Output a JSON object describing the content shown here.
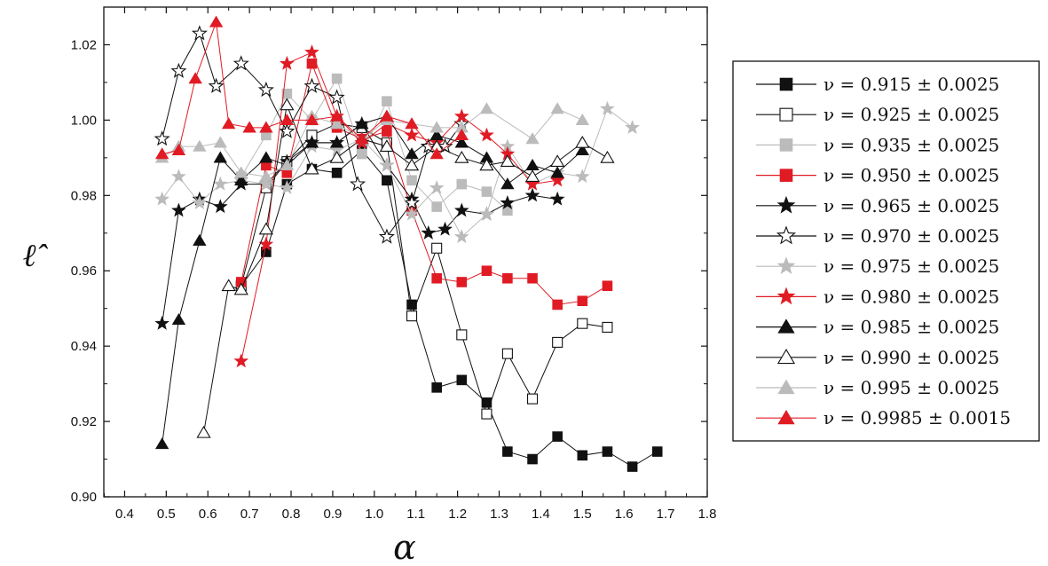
{
  "chart_data": {
    "type": "scatter",
    "xlabel": "α",
    "ylabel": "ℓ̂",
    "xlim": [
      0.35,
      1.8
    ],
    "ylim": [
      0.9,
      1.03
    ],
    "xticks": [
      "0.4",
      "0.5",
      "0.6",
      "0.7",
      "0.8",
      "0.9",
      "1.0",
      "1.1",
      "1.2",
      "1.3",
      "1.4",
      "1.5",
      "1.6",
      "1.7",
      "1.8"
    ],
    "yticks": [
      "0.90",
      "0.92",
      "0.94",
      "0.96",
      "0.98",
      "1.00",
      "1.02"
    ],
    "grid": false,
    "legend_position": "right",
    "series": [
      {
        "name": "ν = 0.915 ± 0.0025",
        "color": "#111111",
        "marker": "square",
        "fill": "filled",
        "x": [
          0.68,
          0.74,
          0.79,
          0.85,
          0.91,
          0.97,
          1.03,
          1.09,
          1.15,
          1.21,
          1.27,
          1.32,
          1.38,
          1.44,
          1.5,
          1.56,
          1.62,
          1.68
        ],
        "y": [
          0.956,
          0.965,
          0.983,
          0.987,
          0.986,
          0.992,
          0.984,
          0.951,
          0.929,
          0.931,
          0.925,
          0.912,
          0.91,
          0.916,
          0.911,
          0.912,
          0.908,
          0.912
        ]
      },
      {
        "name": "ν = 0.925 ± 0.0025",
        "color": "#111111",
        "marker": "square",
        "fill": "open",
        "x": [
          0.68,
          0.74,
          0.79,
          0.85,
          0.91,
          0.97,
          1.03,
          1.09,
          1.15,
          1.21,
          1.27,
          1.32,
          1.38,
          1.44,
          1.5,
          1.56
        ],
        "y": [
          0.956,
          0.982,
          0.989,
          0.996,
          0.999,
          0.998,
          0.994,
          0.948,
          0.966,
          0.943,
          0.922,
          0.938,
          0.926,
          0.941,
          0.946,
          0.945
        ]
      },
      {
        "name": "ν = 0.935 ± 0.0025",
        "color": "#bbbbbb",
        "marker": "square",
        "fill": "filled",
        "x": [
          0.68,
          0.74,
          0.79,
          0.85,
          0.91,
          0.97,
          1.03,
          1.09,
          1.15,
          1.21,
          1.27,
          1.32
        ],
        "y": [
          0.985,
          0.996,
          1.007,
          1.0,
          1.011,
          0.991,
          1.005,
          0.984,
          0.977,
          0.983,
          0.981,
          0.976
        ]
      },
      {
        "name": "ν = 0.950 ± 0.0025",
        "color": "#e01b24",
        "marker": "square",
        "fill": "filled",
        "x": [
          0.68,
          0.74,
          0.79,
          0.85,
          0.91,
          0.97,
          1.03,
          1.09,
          1.15,
          1.21,
          1.27,
          1.32,
          1.38,
          1.44,
          1.5,
          1.56
        ],
        "y": [
          0.957,
          0.988,
          0.986,
          1.015,
          0.998,
          0.995,
          0.997,
          0.976,
          0.958,
          0.957,
          0.96,
          0.958,
          0.958,
          0.951,
          0.952,
          0.956
        ]
      },
      {
        "name": "ν = 0.965 ± 0.0025",
        "color": "#111111",
        "marker": "star",
        "fill": "filled",
        "x": [
          0.49,
          0.53,
          0.58,
          0.63,
          0.68,
          0.74,
          0.79,
          0.85,
          0.91,
          0.97,
          1.03,
          1.09,
          1.13,
          1.17,
          1.21,
          1.27,
          1.32,
          1.38,
          1.44
        ],
        "y": [
          0.946,
          0.976,
          0.979,
          0.977,
          0.983,
          0.983,
          0.989,
          0.994,
          0.994,
          0.999,
          0.988,
          0.979,
          0.97,
          0.971,
          0.976,
          0.975,
          0.978,
          0.98,
          0.979
        ]
      },
      {
        "name": "ν = 0.970 ± 0.0025",
        "color": "#111111",
        "marker": "star",
        "fill": "open",
        "x": [
          0.49,
          0.53,
          0.58,
          0.62,
          0.68,
          0.74,
          0.79,
          0.85,
          0.91,
          0.96,
          1.03,
          1.09,
          1.13,
          1.17,
          1.21
        ],
        "y": [
          0.995,
          1.013,
          1.023,
          1.009,
          1.015,
          1.008,
          0.997,
          1.009,
          1.006,
          0.983,
          0.969,
          0.978,
          0.993,
          0.993,
          0.999
        ]
      },
      {
        "name": "ν = 0.975 ± 0.0025",
        "color": "#bbbbbb",
        "marker": "star",
        "fill": "filled",
        "x": [
          0.49,
          0.53,
          0.58,
          0.63,
          0.68,
          0.74,
          0.79,
          0.85,
          0.91,
          0.97,
          1.03,
          1.09,
          1.15,
          1.21,
          1.27,
          1.32,
          1.38,
          1.44,
          1.5,
          1.56,
          1.62
        ],
        "y": [
          0.979,
          0.985,
          0.978,
          0.983,
          0.984,
          0.983,
          0.982,
          0.993,
          0.992,
          0.995,
          0.988,
          0.975,
          0.982,
          0.969,
          0.975,
          0.993,
          0.983,
          0.986,
          0.985,
          1.003,
          0.998
        ]
      },
      {
        "name": "ν = 0.980 ± 0.0025",
        "color": "#e01b24",
        "marker": "star",
        "fill": "filled",
        "x": [
          0.68,
          0.74,
          0.79,
          0.85,
          0.91,
          0.97,
          1.03,
          1.09,
          1.15,
          1.21,
          1.27,
          1.32,
          1.38,
          1.44
        ],
        "y": [
          0.936,
          0.967,
          1.015,
          1.018,
          1.001,
          0.994,
          0.999,
          0.996,
          0.994,
          1.001,
          0.996,
          0.991,
          0.983,
          0.984
        ]
      },
      {
        "name": "ν = 0.985 ± 0.0025",
        "color": "#111111",
        "marker": "triangle",
        "fill": "filled",
        "x": [
          0.49,
          0.53,
          0.58,
          0.63,
          0.68,
          0.74,
          0.79,
          0.85,
          0.91,
          0.97,
          1.03,
          1.09,
          1.15,
          1.21,
          1.27,
          1.32,
          1.38,
          1.44,
          1.5
        ],
        "y": [
          0.914,
          0.947,
          0.968,
          0.99,
          0.984,
          0.99,
          0.988,
          0.994,
          0.994,
          0.999,
          1.001,
          0.991,
          0.996,
          0.994,
          0.99,
          0.983,
          0.988,
          0.986,
          0.992
        ]
      },
      {
        "name": "ν = 0.990 ± 0.0025",
        "color": "#111111",
        "marker": "triangle",
        "fill": "open",
        "x": [
          0.59,
          0.65,
          0.68,
          0.74,
          0.79,
          0.85,
          0.91,
          0.97,
          1.03,
          1.09,
          1.15,
          1.21,
          1.27,
          1.32,
          1.38,
          1.44,
          1.5,
          1.56
        ],
        "y": [
          0.917,
          0.956,
          0.955,
          0.971,
          1.004,
          0.987,
          0.99,
          0.995,
          0.993,
          0.988,
          0.993,
          0.99,
          0.988,
          0.989,
          0.985,
          0.989,
          0.994,
          0.99
        ]
      },
      {
        "name": "ν = 0.995 ± 0.0025",
        "color": "#bbbbbb",
        "marker": "triangle",
        "fill": "filled",
        "x": [
          0.49,
          0.53,
          0.58,
          0.63,
          0.68,
          0.74,
          0.79,
          0.85,
          0.91,
          0.97,
          1.03,
          1.09,
          1.15,
          1.21,
          1.27,
          1.38,
          1.44,
          1.5
        ],
        "y": [
          0.99,
          0.993,
          0.993,
          0.994,
          0.986,
          0.985,
          0.988,
          1.001,
          0.999,
          0.995,
          1.0,
          0.999,
          0.998,
          0.998,
          1.003,
          0.995,
          1.003,
          1.0
        ]
      },
      {
        "name": "ν = 0.9985 ± 0.0015",
        "color": "#e01b24",
        "marker": "triangle",
        "fill": "filled",
        "x": [
          0.49,
          0.53,
          0.57,
          0.62,
          0.65,
          0.7,
          0.74,
          0.79,
          0.85,
          0.91,
          0.97,
          1.03,
          1.09,
          1.15,
          1.21
        ],
        "y": [
          0.991,
          0.992,
          1.011,
          1.026,
          0.999,
          0.998,
          0.998,
          1.0,
          1.0,
          1.001,
          0.995,
          1.001,
          0.999,
          0.991,
          0.996
        ]
      }
    ]
  }
}
